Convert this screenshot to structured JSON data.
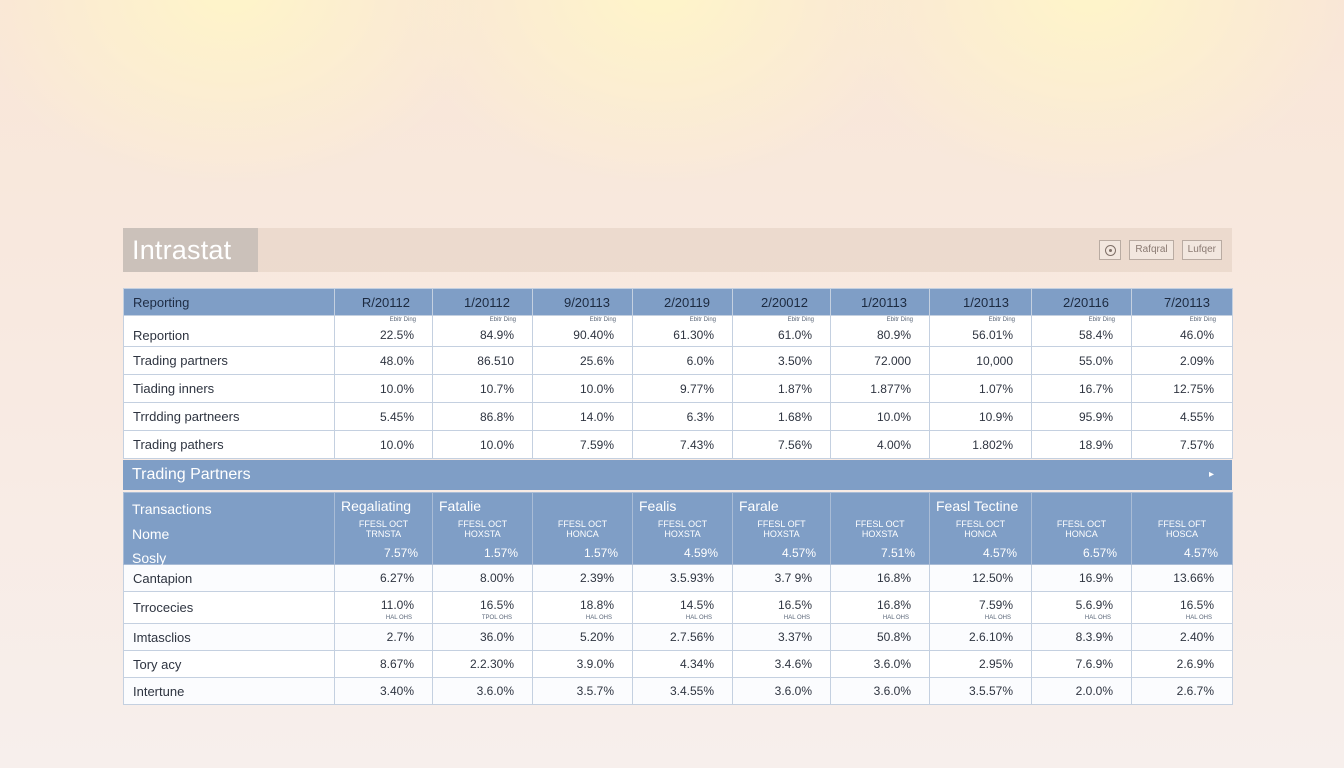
{
  "app": {
    "title": "Intrastat",
    "buttons": [
      {
        "icon": "eye-icon",
        "label": ""
      },
      {
        "label": "Rafqral"
      },
      {
        "label": "Lufqer"
      }
    ]
  },
  "reporting_table": {
    "headers": [
      "Reporting",
      "R/20112",
      "1/20112",
      "9/20113",
      "2/20119",
      "2/20012",
      "1/20113",
      "1/20113",
      "2/20116",
      "7/20113"
    ],
    "rows": [
      {
        "label": "Reportion",
        "note": "Ebitr Ding",
        "values": [
          "22.5%",
          "84.9%",
          "90.40%",
          "61.30%",
          "61.0%",
          "80.9%",
          "56.01%",
          "58.4%",
          "46.0%"
        ]
      },
      {
        "label": "Trading partners",
        "values": [
          "48.0%",
          "86.510",
          "25.6%",
          "6.0%",
          "3.50%",
          "72.000",
          "10,000",
          "55.0%",
          "2.09%"
        ]
      },
      {
        "label": "Tiading inners",
        "values": [
          "10.0%",
          "10.7%",
          "10.0%",
          "9.77%",
          "1.87%",
          "1.877%",
          "1.07%",
          "16.7%",
          "12.75%"
        ]
      },
      {
        "label": "Trrdding partneers",
        "values": [
          "5.45%",
          "86.8%",
          "14.0%",
          "6.3%",
          "1.68%",
          "10.0%",
          "10.9%",
          "95.9%",
          "4.55%"
        ]
      },
      {
        "label": "Trading pathers",
        "values": [
          "10.0%",
          "10.0%",
          "7.59%",
          "7.43%",
          "7.56%",
          "4.00%",
          "1.802%",
          "18.9%",
          "7.57%"
        ]
      }
    ]
  },
  "partners_section": {
    "title": "Trading Partners",
    "header_left": [
      "Transactions",
      "Nome",
      "Sosly"
    ],
    "columns": [
      {
        "title": "Regaliating",
        "sub1": "FFESL OCT",
        "sub2": "TRNSTA",
        "value": "7.57%"
      },
      {
        "title": "Fatalie",
        "sub1": "FFESL OCT",
        "sub2": "HOXSTA",
        "value": "1.57%"
      },
      {
        "title": "",
        "sub1": "FFESL OCT",
        "sub2": "HONCA",
        "value": "1.57%"
      },
      {
        "title": "Fealis",
        "sub1": "FFESL OCT",
        "sub2": "HOXSTA",
        "value": "4.59%"
      },
      {
        "title": "Farale",
        "sub1": "FFESL OFT",
        "sub2": "HOXSTA",
        "value": "4.57%"
      },
      {
        "title": "",
        "sub1": "FFESL OCT",
        "sub2": "HOXSTA",
        "value": "7.51%"
      },
      {
        "title": "Feasl Tectine",
        "sub1": "FFESL OCT",
        "sub2": "HONCA",
        "value": "4.57%"
      },
      {
        "title": "",
        "sub1": "FFESL OCT",
        "sub2": "HONCA",
        "value": "6.57%"
      },
      {
        "title": "",
        "sub1": "FFESL OFT",
        "sub2": "HOSCA",
        "value": "4.57%"
      }
    ],
    "rows": [
      {
        "label": "Cantapion",
        "values": [
          "6.27%",
          "8.00%",
          "2.39%",
          "3.5.93%",
          "3.7 9%",
          "16.8%",
          "12.50%",
          "16.9%",
          "13.66%"
        ]
      },
      {
        "label": "Trrocecies",
        "values": [
          "11.0%",
          "16.5%",
          "18.8%",
          "14.5%",
          "16.5%",
          "16.8%",
          "7.59%",
          "5.6.9%",
          "16.5%"
        ],
        "tiny": [
          "HAL OHS",
          "TPOL OHS",
          "HAL OHS",
          "HAL OHS",
          "HAL OHS",
          "HAL OHS",
          "HAL OHS",
          "HAL OHS",
          "HAL OHS"
        ]
      },
      {
        "label": "Imtasclios",
        "values": [
          "2.7%",
          "36.0%",
          "5.20%",
          "2.7.56%",
          "3.37%",
          "50.8%",
          "2.6.10%",
          "8.3.9%",
          "2.40%"
        ]
      },
      {
        "label": "Tory acy",
        "values": [
          "8.67%",
          "2.2.30%",
          "3.9.0%",
          "4.34%",
          "3.4.6%",
          "3.6.0%",
          "2.95%",
          "7.6.9%",
          "2.6.9%"
        ]
      },
      {
        "label": "Intertune",
        "values": [
          "3.40%",
          "3.6.0%",
          "3.5.7%",
          "3.4.55%",
          "3.6.0%",
          "3.6.0%",
          "3.5.57%",
          "2.0.0%",
          "2.6.7%"
        ]
      }
    ]
  }
}
